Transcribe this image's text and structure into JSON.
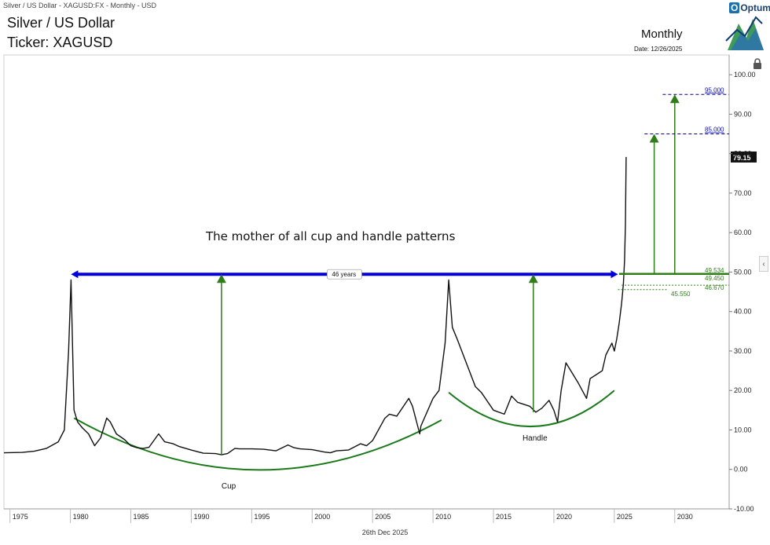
{
  "header": {
    "breadcrumb": "Silver / US Dollar - XAGUSD:FX - Monthly - USD",
    "title": "Silver / US Dollar",
    "ticker": "Ticker: XAGUSD",
    "period": "Monthly",
    "date": "Date: 12/26/2025",
    "logo": "Optuma"
  },
  "footer": {
    "date": "26th Dec 2025"
  },
  "colors": {
    "price": "#111111",
    "blue": "#0000dd",
    "green": "#2e7d18",
    "arc": "#1a7a1a",
    "target": "#00008b"
  },
  "icons": {
    "lock": "lock-icon",
    "panel": "chevron-left-icon"
  },
  "chart_data": {
    "type": "line",
    "title": "Silver / US Dollar",
    "xlabel": "",
    "ylabel": "",
    "xlim": [
      1974.5,
      2034.5
    ],
    "ylim": [
      -10,
      105
    ],
    "x_ticks": [
      1975,
      1980,
      1985,
      1990,
      1995,
      2000,
      2005,
      2010,
      2015,
      2020,
      2025,
      2030
    ],
    "y_ticks": [
      -10,
      0,
      10,
      20,
      30,
      40,
      50,
      60,
      70,
      80,
      90,
      100
    ],
    "y_tick_labels": [
      "-10.00",
      "0.00",
      "10.00",
      "20.00",
      "30.00",
      "40.00",
      "50.00",
      "60.00",
      "70.00",
      "80.00",
      "90.00",
      "100.00"
    ],
    "grid": false,
    "last_price": "79.15",
    "series": [
      {
        "x": [
          1974.5,
          1976,
          1977,
          1978,
          1979,
          1979.5,
          1979.85,
          1980.05,
          1980.3,
          1980.6,
          1981,
          1981.5,
          1982,
          1982.5,
          1983,
          1983.3,
          1983.8,
          1984.5,
          1985,
          1985.5,
          1986,
          1986.5,
          1987.3,
          1987.8,
          1988.5,
          1989,
          1990,
          1991,
          1992,
          1992.5,
          1993,
          1993.6,
          1994,
          1995,
          1996,
          1997,
          1998,
          1998.5,
          1999,
          2000,
          2001,
          2001.5,
          2002,
          2003,
          2004,
          2004.5,
          2005,
          2006,
          2006.4,
          2007,
          2008,
          2008.3,
          2008.9,
          2009,
          2010,
          2010.5,
          2011,
          2011.3,
          2011.6,
          2012,
          2012.5,
          2013,
          2013.5,
          2014,
          2015,
          2015.9,
          2016.5,
          2017,
          2018,
          2018.5,
          2019,
          2019.6,
          2020,
          2020.3,
          2020.6,
          2021,
          2022,
          2022.7,
          2023,
          2024,
          2024.3,
          2024.8,
          2025,
          2025.2,
          2025.4,
          2025.6,
          2025.75,
          2025.85,
          2025.92,
          2025.98
        ],
        "y": [
          4.2,
          4.3,
          4.6,
          5.3,
          7,
          10,
          30,
          48,
          15,
          12,
          10.5,
          9,
          6,
          8,
          13,
          12,
          9,
          7.5,
          6,
          5.5,
          5.3,
          5.6,
          9,
          7,
          6.5,
          5.8,
          4.9,
          4.1,
          4,
          3.7,
          4,
          5.3,
          5.2,
          5.2,
          5.1,
          4.7,
          6.2,
          5.5,
          5.2,
          5,
          4.4,
          4.2,
          4.7,
          4.9,
          6.5,
          6,
          7.3,
          12.9,
          14,
          13.5,
          18,
          16,
          9,
          11,
          18,
          20,
          32,
          48,
          36,
          33,
          29,
          25,
          21,
          19.5,
          15,
          14,
          18.6,
          17,
          16,
          14.5,
          15.5,
          17.5,
          15,
          12,
          20,
          27,
          22,
          18,
          23,
          25,
          29,
          32,
          30,
          33,
          37,
          42,
          47,
          53,
          62,
          79.15
        ]
      }
    ],
    "resistance": {
      "label": "46 years",
      "level": 49.45,
      "from": 1980.05,
      "to": 2025.3
    },
    "price_labels": [
      "49.534",
      "49.450",
      "46.670",
      "45.550"
    ],
    "price_levels": [
      49.534,
      49.45,
      46.67,
      45.55
    ],
    "targets": [
      {
        "label": "85.000",
        "value": 85
      },
      {
        "label": "95.000",
        "value": 95
      }
    ],
    "annotations": {
      "main": "The mother of all cup and handle patterns",
      "cup": "Cup",
      "handle": "Handle"
    }
  }
}
